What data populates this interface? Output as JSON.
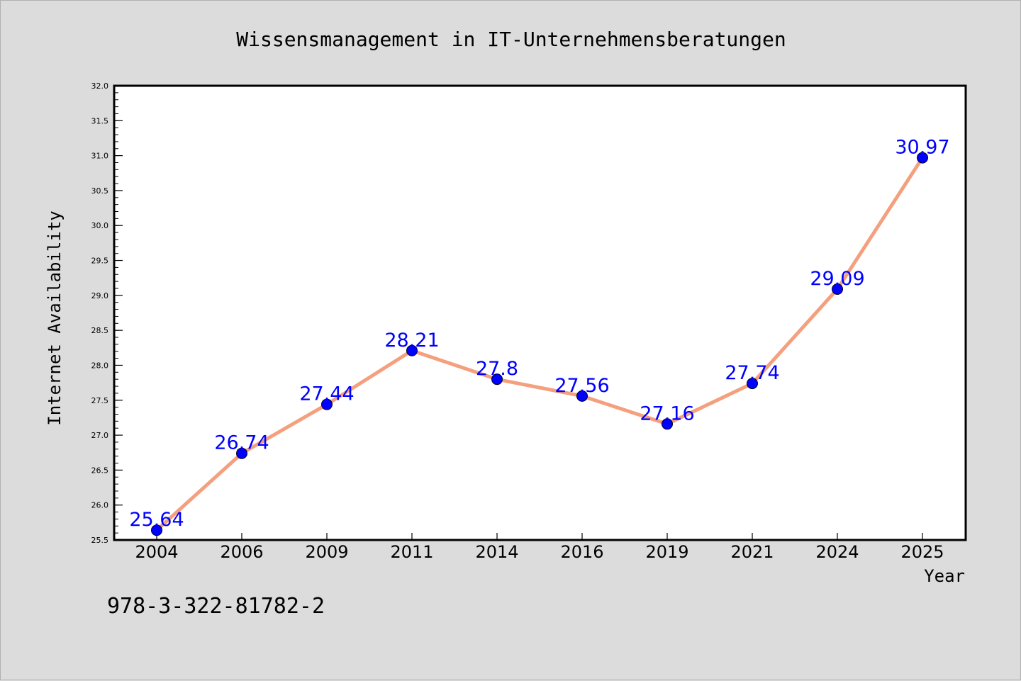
{
  "chart_data": {
    "type": "line",
    "title": "Wissensmanagement in IT-Unternehmensberatungen",
    "xlabel": "Year",
    "ylabel": "Internet Availability",
    "categories": [
      "2004",
      "2006",
      "2009",
      "2011",
      "2014",
      "2016",
      "2019",
      "2021",
      "2024",
      "2025"
    ],
    "series": [
      {
        "values": [
          25.64,
          26.74,
          27.44,
          28.21,
          27.8,
          27.56,
          27.16,
          27.74,
          29.09,
          30.97
        ],
        "data_labels": [
          "25.64",
          "26.74",
          "27.44",
          "28.21",
          "27.8",
          "27.56",
          "27.16",
          "27.74",
          "29.09",
          "30.97"
        ],
        "line_color": "#f4a07e",
        "marker_color": "#0000ff"
      }
    ],
    "ylim": [
      25.5,
      32.0
    ],
    "yticks": [
      "25.5",
      "26.0",
      "26.5",
      "27.0",
      "27.5",
      "28.0",
      "28.5",
      "29.0",
      "29.5",
      "30.0",
      "30.5",
      "31.0",
      "31.5",
      "32.0"
    ],
    "grid": false,
    "legend": "none",
    "label_color": "#0000ff"
  },
  "footer": {
    "isbn": "978-3-322-81782-2"
  }
}
